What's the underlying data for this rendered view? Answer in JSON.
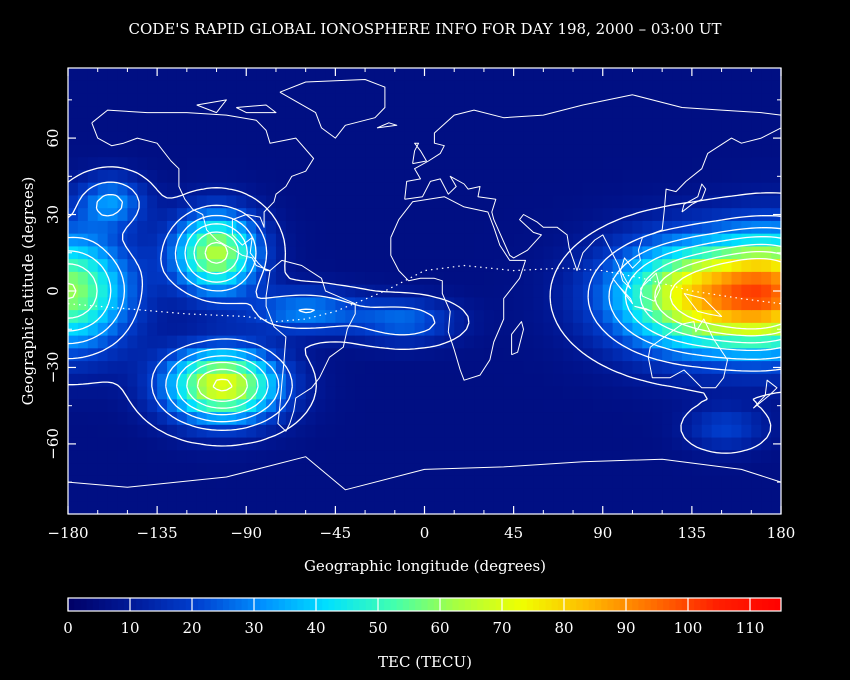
{
  "chart_data": {
    "type": "heatmap",
    "title": "CODE'S RAPID GLOBAL IONOSPHERE INFO FOR DAY 198, 2000 – 03:00 UT",
    "xlabel": "Geographic longitude (degrees)",
    "ylabel": "Geographic latitude (degrees)",
    "xlim": [
      -180,
      180
    ],
    "ylim": [
      -87.5,
      87.5
    ],
    "x_ticks": [
      -180,
      -135,
      -90,
      -45,
      0,
      45,
      90,
      135,
      180
    ],
    "x_tick_labels": [
      "−180",
      "−135",
      "−90",
      "−45",
      "0",
      "45",
      "90",
      "135",
      "180"
    ],
    "y_ticks": [
      -60,
      -30,
      0,
      30,
      60
    ],
    "y_tick_labels": [
      "−60",
      "−30",
      "0",
      "30",
      "60"
    ],
    "colorbar": {
      "label": "TEC (TECU)",
      "range": [
        0,
        115
      ],
      "ticks": [
        0,
        10,
        20,
        30,
        40,
        50,
        60,
        70,
        80,
        90,
        100,
        110
      ],
      "tick_labels": [
        "0",
        "10",
        "20",
        "30",
        "40",
        "50",
        "60",
        "70",
        "80",
        "90",
        "100",
        "110"
      ]
    },
    "contour_interval_tecu": 10,
    "background_level_tecu": 6,
    "features": [
      {
        "lon": -105,
        "lat": 15,
        "peak_tecu": 58,
        "sx": 15,
        "sy": 11
      },
      {
        "lon": -102,
        "lat": -37,
        "peak_tecu": 66,
        "sx": 20,
        "sy": 10
      },
      {
        "lon": -180,
        "lat": 0,
        "peak_tecu": 55,
        "sx": 22,
        "sy": 16
      },
      {
        "lon": 180,
        "lat": 0,
        "peak_tecu": 55,
        "sx": 22,
        "sy": 16
      },
      {
        "lon": 140,
        "lat": -2,
        "peak_tecu": 70,
        "sx": 32,
        "sy": 15
      },
      {
        "lon": -158,
        "lat": 35,
        "peak_tecu": 24,
        "sx": 12,
        "sy": 7
      },
      {
        "lon": -60,
        "lat": -8,
        "peak_tecu": 24,
        "sx": 20,
        "sy": 6
      },
      {
        "lon": -10,
        "lat": -12,
        "peak_tecu": 20,
        "sx": 18,
        "sy": 6
      },
      {
        "lon": 152,
        "lat": -54,
        "peak_tecu": 14,
        "sx": 14,
        "sy": 6
      }
    ],
    "map_overlay": "continent coastlines",
    "colormap": [
      "#000066",
      "#001a99",
      "#0040d0",
      "#0090ff",
      "#00e0ff",
      "#40ffb0",
      "#a8ff40",
      "#f0ff00",
      "#ffbb00",
      "#ff7000",
      "#ff2000",
      "#ff0000"
    ]
  }
}
